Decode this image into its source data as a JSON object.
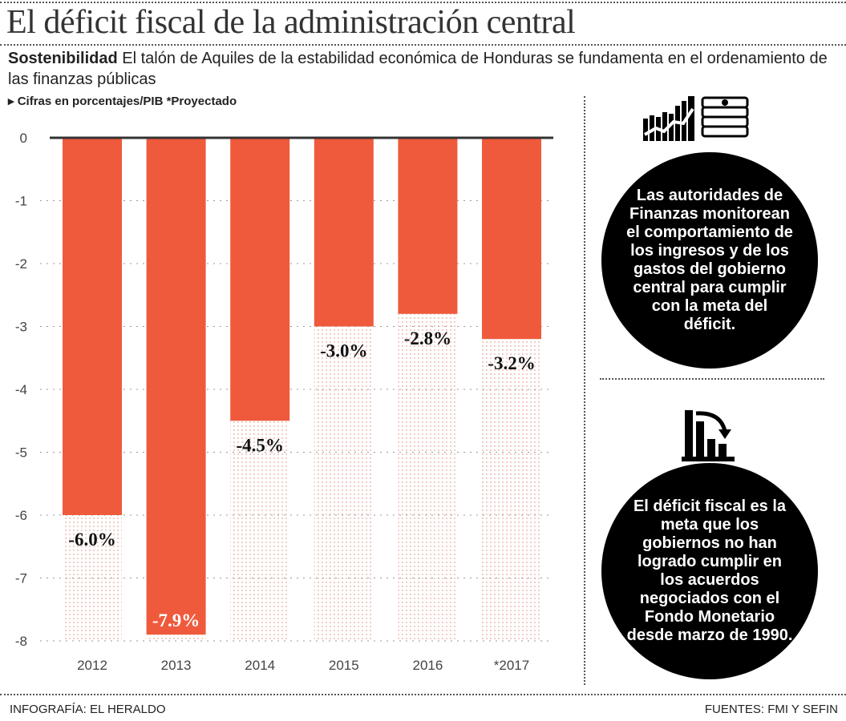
{
  "title": "El déficit fiscal de la administración central",
  "subtitle": {
    "lead": "Sostenibilidad",
    "text": " El talón de Aquiles de la estabilidad económica de Honduras se fundamenta en el ordenamiento de las finanzas públicas"
  },
  "notes": "▸ Cifras en porcentajes/PIB   *Proyectado",
  "chart_data": {
    "type": "bar",
    "categories": [
      "2012",
      "2013",
      "2014",
      "2015",
      "2016",
      "*2017"
    ],
    "values": [
      -6.0,
      -7.9,
      -4.5,
      -3.0,
      -2.8,
      -3.2
    ],
    "data_labels": [
      "-6.0%",
      "-7.9%",
      "-4.5%",
      "-3.0%",
      "-2.8%",
      "-3.2%"
    ],
    "yticks": [
      "0",
      "-1",
      "-2",
      "-3",
      "-4",
      "-5",
      "-6",
      "-7",
      "-8"
    ],
    "ylim": [
      -8,
      0
    ],
    "grid": true,
    "bar_color": "#ef5a3c"
  },
  "sidebar": {
    "box1": {
      "icon": "chart-money-icon",
      "text": "Las autoridades de Finanzas monitorean el comportamiento de los ingresos y de los gastos del gobierno central para cumplir con la meta del déficit."
    },
    "box2": {
      "icon": "declining-chart-icon",
      "text": "El déficit fiscal es la meta que los gobiernos no han logrado cumplir en los acuerdos negociados con el Fondo Monetario desde marzo de 1990."
    }
  },
  "footer": {
    "credit": "INFOGRAFÍA: EL HERALDO",
    "sources": "FUENTES: FMI Y SEFIN"
  }
}
